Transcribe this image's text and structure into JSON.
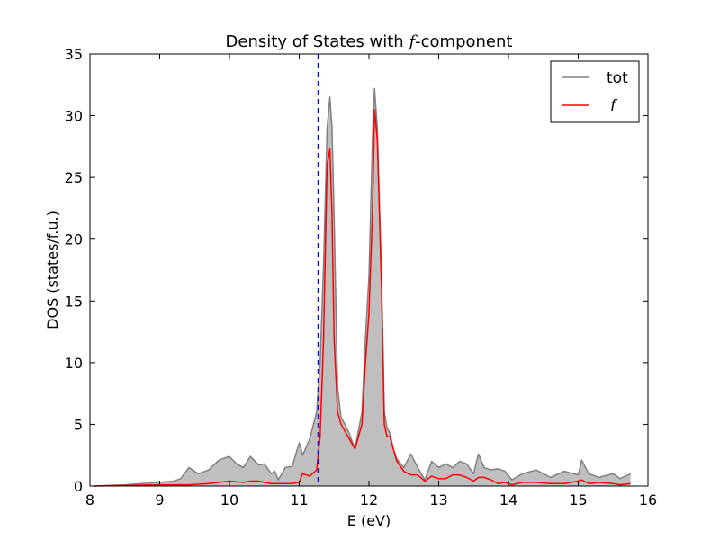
{
  "chart_data": {
    "type": "area",
    "title": "Density of States with",
    "title_f": "f",
    "title_suffix": "-component",
    "xlabel": "E (eV)",
    "ylabel": "DOS (states/f.u.)",
    "xlim": [
      8,
      16
    ],
    "ylim": [
      0,
      35
    ],
    "xticks": [
      8,
      9,
      10,
      11,
      12,
      13,
      14,
      15,
      16
    ],
    "yticks": [
      0,
      5,
      10,
      15,
      20,
      25,
      30,
      35
    ],
    "grid": false,
    "legend_position": "top-right",
    "vline": {
      "x": 11.27,
      "color": "#0000ff",
      "style": "dashed"
    },
    "x": [
      8.05,
      8.5,
      9.0,
      9.2,
      9.3,
      9.42,
      9.55,
      9.7,
      9.85,
      10.0,
      10.1,
      10.2,
      10.3,
      10.42,
      10.5,
      10.6,
      10.65,
      10.7,
      10.8,
      10.9,
      11.0,
      11.05,
      11.15,
      11.25,
      11.3,
      11.35,
      11.4,
      11.44,
      11.47,
      11.5,
      11.55,
      11.6,
      11.7,
      11.8,
      11.9,
      11.95,
      12.0,
      12.05,
      12.08,
      12.12,
      12.18,
      12.22,
      12.26,
      12.3,
      12.35,
      12.4,
      12.5,
      12.6,
      12.7,
      12.8,
      12.9,
      13.0,
      13.1,
      13.2,
      13.3,
      13.4,
      13.5,
      13.57,
      13.65,
      13.75,
      13.85,
      13.95,
      14.05,
      14.2,
      14.4,
      14.6,
      14.8,
      15.0,
      15.05,
      15.15,
      15.3,
      15.5,
      15.6,
      15.75
    ],
    "series": [
      {
        "name": "tot",
        "color": "#808080",
        "fill": "#bfbfbf",
        "values": [
          0.0,
          0.1,
          0.3,
          0.4,
          0.6,
          1.5,
          1.0,
          1.3,
          2.1,
          2.4,
          1.8,
          1.5,
          2.4,
          1.7,
          1.8,
          1.0,
          1.2,
          0.5,
          1.5,
          1.6,
          3.5,
          2.5,
          3.8,
          6.0,
          10.0,
          18.0,
          29.0,
          31.5,
          29.0,
          22.0,
          8.0,
          5.6,
          4.5,
          3.0,
          6.0,
          12.0,
          17.0,
          28.0,
          32.2,
          29.0,
          17.0,
          6.0,
          4.7,
          4.3,
          3.0,
          2.2,
          1.5,
          2.6,
          1.5,
          0.5,
          2.0,
          1.5,
          1.8,
          1.5,
          2.0,
          1.8,
          1.0,
          2.6,
          1.5,
          1.3,
          1.4,
          1.2,
          0.5,
          1.0,
          1.3,
          0.7,
          1.2,
          0.9,
          2.1,
          1.0,
          0.7,
          1.0,
          0.6,
          1.0
        ]
      },
      {
        "name": "f",
        "color": "#ff0000",
        "values": [
          0.0,
          0.05,
          0.1,
          0.1,
          0.1,
          0.1,
          0.15,
          0.2,
          0.3,
          0.4,
          0.35,
          0.3,
          0.4,
          0.4,
          0.3,
          0.2,
          0.2,
          0.2,
          0.2,
          0.2,
          0.3,
          1.0,
          0.8,
          1.3,
          4.0,
          12.0,
          26.0,
          27.3,
          22.0,
          12.0,
          6.0,
          5.0,
          4.0,
          3.0,
          5.0,
          10.0,
          14.0,
          22.0,
          30.5,
          28.0,
          16.0,
          5.0,
          4.0,
          4.0,
          3.0,
          2.0,
          1.2,
          0.9,
          0.9,
          0.4,
          0.8,
          0.6,
          0.6,
          0.9,
          0.9,
          0.7,
          0.4,
          0.7,
          0.7,
          0.5,
          0.2,
          0.3,
          0.1,
          0.3,
          0.3,
          0.2,
          0.2,
          0.4,
          0.5,
          0.2,
          0.3,
          0.2,
          0.1,
          0.2
        ]
      }
    ]
  }
}
